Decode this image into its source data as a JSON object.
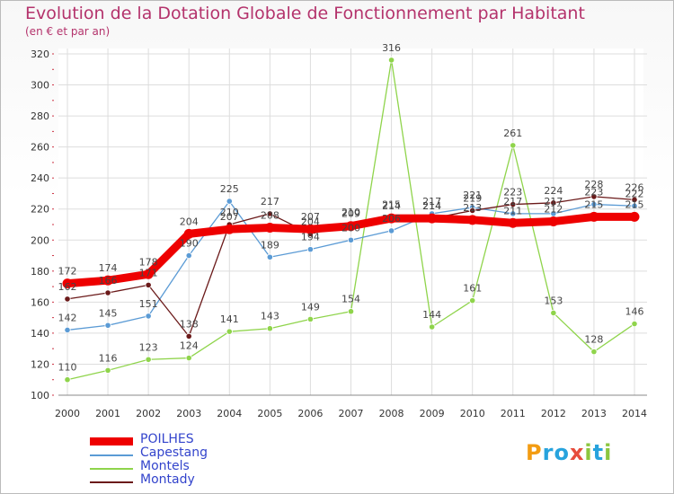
{
  "title": "Evolution de la Dotation Globale de Fonctionnement par Habitant",
  "subtitle": "(en € et par an)",
  "chart_data": {
    "type": "line",
    "title": "Evolution de la Dotation Globale de Fonctionnement par Habitant",
    "subtitle": "(en € et par an)",
    "xlabel": "",
    "ylabel": "",
    "ylim": [
      100,
      320
    ],
    "yticks": [
      100,
      120,
      140,
      160,
      180,
      200,
      220,
      240,
      260,
      280,
      300,
      320
    ],
    "categories": [
      "2000",
      "2001",
      "2002",
      "2003",
      "2004",
      "2005",
      "2006",
      "2007",
      "2008",
      "2009",
      "2010",
      "2011",
      "2012",
      "2013",
      "2014"
    ],
    "grid": true,
    "legend_position": "bottom-left",
    "series": [
      {
        "name": "POILHES",
        "color": "#ee0000",
        "values": [
          172,
          174,
          178,
          204,
          207,
          208,
          207,
          209,
          214,
          214,
          213,
          211,
          212,
          215,
          215
        ]
      },
      {
        "name": "Capestang",
        "color": "#5b9bd5",
        "values": [
          142,
          145,
          151,
          190,
          225,
          189,
          194,
          200,
          206,
          217,
          221,
          217,
          217,
          223,
          222
        ]
      },
      {
        "name": "Montels",
        "color": "#8fd44b",
        "values": [
          110,
          116,
          123,
          124,
          141,
          143,
          149,
          154,
          316,
          144,
          161,
          261,
          153,
          128,
          146
        ]
      },
      {
        "name": "Montady",
        "color": "#6b1a1a",
        "values": [
          162,
          166,
          171,
          138,
          210,
          217,
          204,
          210,
          215,
          214,
          219,
          223,
          224,
          228,
          226
        ]
      }
    ]
  },
  "logo": {
    "letters": [
      {
        "char": "P",
        "color": "#f39c12"
      },
      {
        "char": "r",
        "color": "#27a3dd"
      },
      {
        "char": "o",
        "color": "#27a3dd"
      },
      {
        "char": "x",
        "color": "#e74c3c"
      },
      {
        "char": "i",
        "color": "#8cc63f"
      },
      {
        "char": "t",
        "color": "#27a3dd"
      },
      {
        "char": "i",
        "color": "#8cc63f"
      }
    ]
  }
}
